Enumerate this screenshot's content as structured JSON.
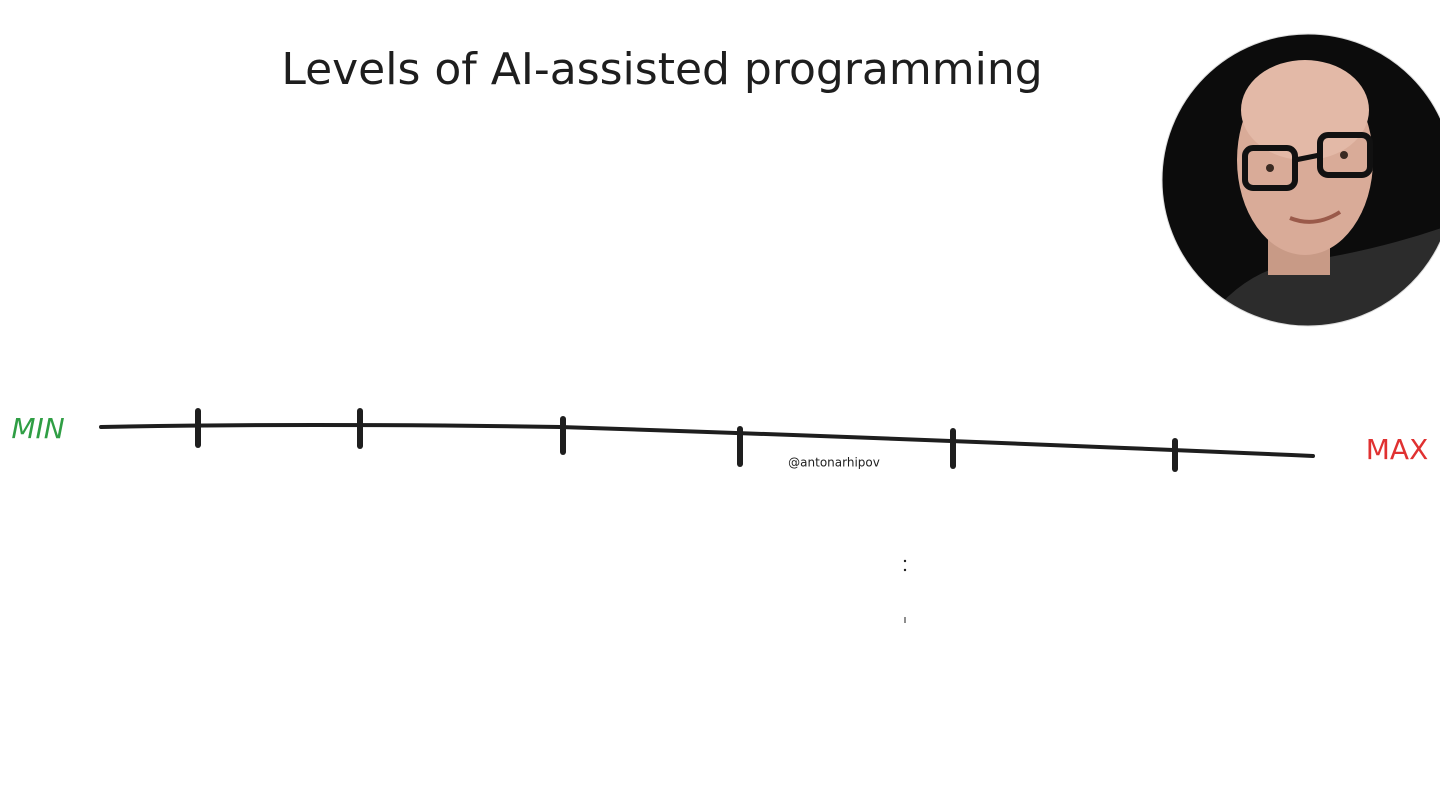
{
  "title": "Levels of AI-assisted programming",
  "scale": {
    "min_label": "MIN",
    "max_label": "MAX"
  },
  "handle": "@antonarhipov"
}
